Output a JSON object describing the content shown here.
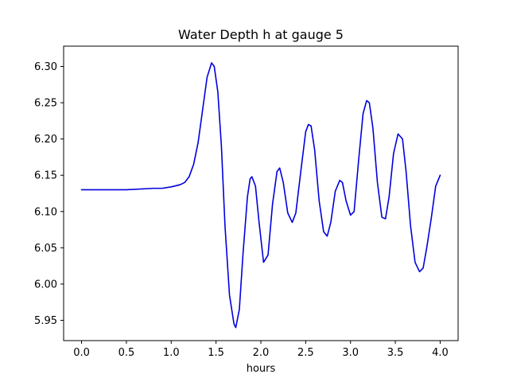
{
  "chart_data": {
    "type": "line",
    "title": "Water Depth h at gauge 5",
    "xlabel": "hours",
    "ylabel": "",
    "xlim": [
      -0.2,
      4.2
    ],
    "ylim": [
      5.922,
      6.328
    ],
    "xticks": [
      0.0,
      0.5,
      1.0,
      1.5,
      2.0,
      2.5,
      3.0,
      3.5,
      4.0
    ],
    "xtick_labels": [
      "0.0",
      "0.5",
      "1.0",
      "1.5",
      "2.0",
      "2.5",
      "3.0",
      "3.5",
      "4.0"
    ],
    "yticks": [
      5.95,
      6.0,
      6.05,
      6.1,
      6.15,
      6.2,
      6.25,
      6.3
    ],
    "ytick_labels": [
      "5.95",
      "6.00",
      "6.05",
      "6.10",
      "6.15",
      "6.20",
      "6.25",
      "6.30"
    ],
    "grid": false,
    "series": [
      {
        "name": "",
        "color": "#0000dd",
        "x": [
          0.0,
          0.5,
          0.8,
          0.9,
          1.0,
          1.1,
          1.15,
          1.2,
          1.25,
          1.3,
          1.35,
          1.4,
          1.45,
          1.48,
          1.52,
          1.56,
          1.6,
          1.65,
          1.7,
          1.72,
          1.76,
          1.8,
          1.85,
          1.88,
          1.9,
          1.94,
          1.98,
          2.03,
          2.08,
          2.13,
          2.18,
          2.21,
          2.25,
          2.3,
          2.35,
          2.39,
          2.45,
          2.5,
          2.53,
          2.56,
          2.6,
          2.65,
          2.7,
          2.74,
          2.78,
          2.83,
          2.88,
          2.91,
          2.95,
          3.0,
          3.04,
          3.09,
          3.14,
          3.18,
          3.21,
          3.25,
          3.3,
          3.35,
          3.39,
          3.43,
          3.48,
          3.53,
          3.58,
          3.62,
          3.67,
          3.72,
          3.77,
          3.81,
          3.85,
          3.9,
          3.95,
          4.0
        ],
        "y": [
          6.13,
          6.13,
          6.132,
          6.132,
          6.134,
          6.137,
          6.14,
          6.148,
          6.165,
          6.195,
          6.24,
          6.285,
          6.305,
          6.3,
          6.265,
          6.19,
          6.08,
          5.985,
          5.945,
          5.94,
          5.965,
          6.04,
          6.12,
          6.145,
          6.148,
          6.135,
          6.085,
          6.03,
          6.04,
          6.11,
          6.155,
          6.16,
          6.14,
          6.098,
          6.085,
          6.098,
          6.16,
          6.21,
          6.22,
          6.218,
          6.185,
          6.115,
          6.072,
          6.066,
          6.085,
          6.128,
          6.143,
          6.14,
          6.115,
          6.095,
          6.1,
          6.17,
          6.235,
          6.253,
          6.25,
          6.215,
          6.14,
          6.092,
          6.09,
          6.12,
          6.18,
          6.207,
          6.2,
          6.155,
          6.08,
          6.03,
          6.017,
          6.022,
          6.05,
          6.09,
          6.135,
          6.15
        ]
      }
    ]
  },
  "colors": {
    "line": "#0000dd",
    "axes": "#000000",
    "background": "#ffffff"
  }
}
